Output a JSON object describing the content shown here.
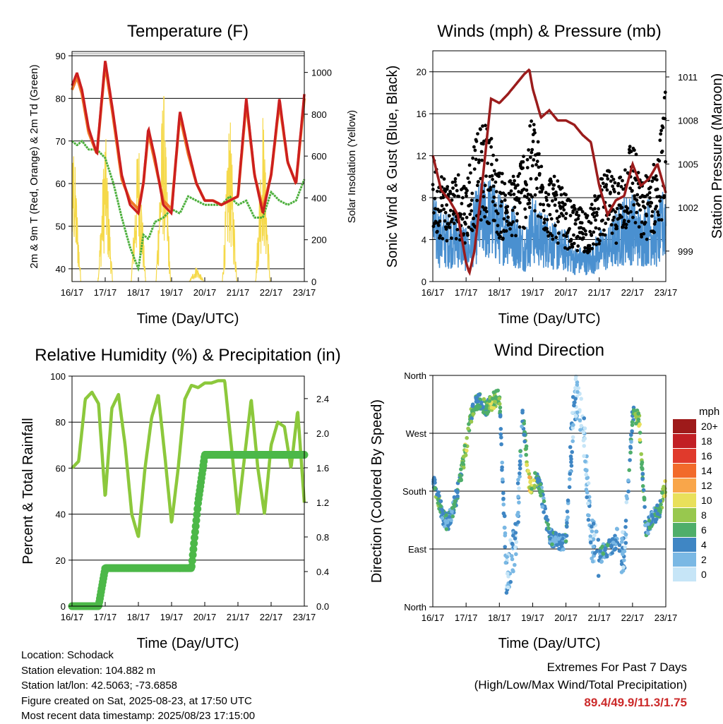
{
  "xticks": [
    "16/17",
    "17/17",
    "18/17",
    "19/17",
    "20/17",
    "21/17",
    "22/17",
    "23/17"
  ],
  "panels": {
    "temperature": {
      "title": "Temperature (F)",
      "xlabel": "Time (Day/UTC)",
      "ylabel_left": "2m & 9m T (Red, Orange) & 2m Td (Green)",
      "ylabel_right": "Solar Insolation (Yellow)",
      "yticks_left": [
        "40",
        "50",
        "60",
        "70",
        "80",
        "90"
      ],
      "yticks_right": [
        "0",
        "200",
        "400",
        "600",
        "800",
        "1000"
      ]
    },
    "winds": {
      "title": "Winds (mph) & Pressure (mb)",
      "xlabel": "Time (Day/UTC)",
      "ylabel_left": "Sonic Wind & Gust (Blue, Black)",
      "ylabel_right": "Station Pressure (Maroon)",
      "yticks_left": [
        "0",
        "4",
        "8",
        "12",
        "16",
        "20"
      ],
      "yticks_right": [
        "999",
        "1002",
        "1005",
        "1008",
        "1011"
      ]
    },
    "humidity": {
      "title": "Relative Humidity (%) & Precipitation (in)",
      "xlabel": "Time (Day/UTC)",
      "ylabel_left": "Percent & Total Rainfall",
      "yticks_left": [
        "0",
        "20",
        "40",
        "60",
        "80",
        "100"
      ],
      "yticks_right": [
        "0.0",
        "0.4",
        "0.8",
        "1.2",
        "1.6",
        "2.0",
        "2.4"
      ]
    },
    "direction": {
      "title": "Wind Direction",
      "xlabel": "Time (Day/UTC)",
      "ylabel_left": "Direction (Colored By Speed)",
      "yticks_left": [
        "North",
        "East",
        "South",
        "West",
        "North"
      ],
      "legend_title": "mph",
      "legend": [
        {
          "label": "20+",
          "color": "#9e1a1a"
        },
        {
          "label": "18",
          "color": "#c21f24"
        },
        {
          "label": "16",
          "color": "#e03a2c"
        },
        {
          "label": "14",
          "color": "#f26a2a"
        },
        {
          "label": "12",
          "color": "#f9a64a"
        },
        {
          "label": "10",
          "color": "#e9e05a"
        },
        {
          "label": "8",
          "color": "#98c84e"
        },
        {
          "label": "6",
          "color": "#4fae6a"
        },
        {
          "label": "4",
          "color": "#3f86c4"
        },
        {
          "label": "2",
          "color": "#7ab8e4"
        },
        {
          "label": "0",
          "color": "#c6e5f7"
        }
      ]
    }
  },
  "station": {
    "location": "Location: Schodack",
    "elevation": "Station elevation: 104.882 m",
    "latlon": "Station lat/lon: 42.5063; -73.6858",
    "created": "Figure created on Sat, 2025-08-23, at 17:50 UTC",
    "recent": "Most recent data timestamp: 2025/08/23 17:15:00"
  },
  "extremes": {
    "title": "Extremes For Past 7 Days",
    "subtitle": "(High/Low/Max Wind/Total Precipitation)",
    "values": "89.4/49.9/11.3/1.75"
  },
  "colors": {
    "temp2m": "#cc1f1f",
    "temp9m": "#f07a28",
    "dewpoint": "#4caf3c",
    "solar": "#f5d94a",
    "wind": "#4a90d0",
    "gust": "#000000",
    "pressure": "#9b1c1c",
    "rh": "#8cc83c",
    "precip": "#4cb848"
  },
  "chart_data": [
    {
      "type": "line",
      "title": "Temperature (F)",
      "xlabel": "Time (Day/UTC)",
      "ylabel": "2m & 9m T (Red, Orange) & 2m Td (Green)",
      "y2label": "Solar Insolation (Yellow)",
      "ylim": [
        37,
        91
      ],
      "y2lim": [
        0,
        1100
      ],
      "x": [
        0,
        0.15,
        0.3,
        0.5,
        0.75,
        1,
        1.25,
        1.5,
        1.75,
        2,
        2.15,
        2.3,
        2.5,
        2.75,
        3,
        3.25,
        3.5,
        3.75,
        4,
        4.25,
        4.5,
        4.75,
        5,
        5.25,
        5.5,
        5.75,
        6,
        6.25,
        6.5,
        6.75,
        7
      ],
      "series": [
        {
          "name": "2m T",
          "values": [
            83,
            86,
            82,
            73,
            67,
            89,
            76,
            62,
            55,
            53,
            60,
            73,
            66,
            55,
            53,
            77,
            68,
            60,
            56,
            56,
            55,
            56,
            57,
            80,
            62,
            53,
            62,
            80,
            65,
            60,
            81
          ]
        },
        {
          "name": "9m T",
          "values": [
            82,
            85,
            81,
            72,
            67,
            88,
            75,
            61,
            56,
            54,
            60,
            72,
            65,
            56,
            54,
            76,
            67,
            60,
            56,
            56,
            55,
            56,
            57,
            79,
            62,
            54,
            62,
            79,
            65,
            60,
            80
          ]
        },
        {
          "name": "2m Td",
          "values": [
            70,
            69,
            70,
            68,
            68,
            66,
            60,
            52,
            45,
            40,
            48,
            47,
            51,
            52,
            54,
            53,
            57,
            56,
            55,
            55,
            55,
            57,
            55,
            56,
            52,
            52,
            58,
            56,
            55,
            56,
            61
          ]
        },
        {
          "name": "Solar Insolation",
          "values": [
            700,
            0,
            0,
            0,
            0,
            760,
            0,
            0,
            0,
            750,
            0,
            0,
            0,
            1000,
            0,
            0,
            0,
            80,
            0,
            0,
            0,
            850,
            0,
            0,
            0,
            850,
            0,
            0,
            0,
            750,
            0
          ]
        }
      ]
    },
    {
      "type": "scatter",
      "title": "Winds (mph) & Pressure (mb)",
      "xlabel": "Time (Day/UTC)",
      "ylabel": "Sonic Wind & Gust (Blue, Black)",
      "y2label": "Station Pressure (Maroon)",
      "ylim": [
        0,
        22
      ],
      "y2lim": [
        996.9,
        1012.8
      ],
      "x": [
        0,
        0.25,
        0.5,
        0.75,
        1,
        1.1,
        1.25,
        1.5,
        1.75,
        2,
        2.25,
        2.5,
        2.75,
        2.9,
        3,
        3.25,
        3.5,
        3.75,
        4,
        4.25,
        4.5,
        4.75,
        5,
        5.25,
        5.5,
        5.75,
        6,
        6.25,
        6.5,
        6.75,
        7
      ],
      "series": [
        {
          "name": "Pressure",
          "values": [
            1005.6,
            1003.2,
            1002.5,
            1001.5,
            998.2,
            997.5,
            999.0,
            1004.0,
            1009.5,
            1009.2,
            1009.8,
            1010.5,
            1011.2,
            1011.5,
            1010.2,
            1008.2,
            1008.7,
            1008.0,
            1008.0,
            1007.7,
            1007.0,
            1006.5,
            1003.5,
            1001.5,
            1002.5,
            1002.8,
            1005.0,
            1003.5,
            1004.0,
            1005.0,
            1003.0
          ]
        },
        {
          "name": "Wind",
          "values": [
            5,
            4,
            4,
            4,
            3,
            3,
            5,
            6,
            6,
            5,
            5,
            4,
            3,
            4,
            5,
            4,
            4,
            3,
            3,
            2,
            2,
            2,
            3,
            3,
            4,
            5,
            5,
            4,
            5,
            4,
            6
          ]
        },
        {
          "name": "Gust",
          "values": [
            10,
            9,
            8,
            9,
            8,
            10,
            11,
            13,
            12,
            9,
            8,
            9,
            11,
            12,
            14,
            10,
            9,
            8,
            7,
            6,
            6,
            6,
            8,
            9,
            8,
            10,
            12,
            8,
            9,
            10,
            16
          ]
        }
      ]
    },
    {
      "type": "line",
      "title": "Relative Humidity (%) & Precipitation (in)",
      "xlabel": "Time (Day/UTC)",
      "ylabel": "Percent & Total Rainfall",
      "ylim": [
        0,
        100
      ],
      "y2lim": [
        0,
        2.66
      ],
      "x": [
        0,
        0.2,
        0.4,
        0.6,
        0.8,
        1,
        1.2,
        1.4,
        1.6,
        1.8,
        2,
        2.2,
        2.4,
        2.6,
        2.8,
        3,
        3.2,
        3.4,
        3.6,
        3.8,
        4,
        4.2,
        4.4,
        4.6,
        4.8,
        5,
        5.2,
        5.4,
        5.6,
        5.8,
        6,
        6.2,
        6.4,
        6.6,
        6.8,
        7
      ],
      "series": [
        {
          "name": "Relative Humidity",
          "values": [
            60,
            63,
            90,
            93,
            88,
            47,
            86,
            92,
            70,
            40,
            30,
            60,
            82,
            92,
            65,
            36,
            60,
            90,
            96,
            95,
            97,
            97,
            98,
            98,
            70,
            40,
            65,
            90,
            60,
            40,
            70,
            80,
            78,
            60,
            85,
            45
          ]
        },
        {
          "name": "Total Precipitation",
          "values": [
            0,
            0,
            0,
            0,
            0,
            0.44,
            0.44,
            0.44,
            0.44,
            0.44,
            0.44,
            0.44,
            0.44,
            0.44,
            0.44,
            0.44,
            0.44,
            0.44,
            0.44,
            1.2,
            1.75,
            1.75,
            1.75,
            1.75,
            1.75,
            1.75,
            1.75,
            1.75,
            1.75,
            1.75,
            1.75,
            1.75,
            1.75,
            1.75,
            1.75,
            1.75
          ]
        }
      ]
    },
    {
      "type": "scatter",
      "title": "Wind Direction",
      "xlabel": "Time (Day/UTC)",
      "ylabel": "Direction (Colored By Speed)",
      "ylim": [
        0,
        360
      ],
      "x": [
        0,
        0.15,
        0.3,
        0.45,
        0.6,
        0.8,
        1,
        1.1,
        1.2,
        1.4,
        1.6,
        1.8,
        2,
        2.2,
        2.5,
        2.7,
        2.9,
        3,
        3.1,
        3.25,
        3.5,
        3.75,
        4,
        4.25,
        4.5,
        4.75,
        5,
        5.25,
        5.5,
        5.75,
        6,
        6.2,
        6.4,
        6.6,
        6.8,
        7
      ],
      "series": [
        {
          "name": "Direction",
          "values": [
            200,
            170,
            140,
            130,
            150,
            190,
            250,
            280,
            310,
            320,
            310,
            320,
            330,
            50,
            100,
            300,
            190,
            190,
            200,
            180,
            110,
            100,
            100,
            330,
            300,
            110,
            80,
            90,
            100,
            80,
            300,
            290,
            120,
            140,
            150,
            190
          ]
        },
        {
          "name": "Speed",
          "values": [
            4,
            6,
            4,
            3,
            4,
            6,
            8,
            7,
            6,
            5,
            6,
            8,
            6,
            2,
            2,
            4,
            10,
            8,
            6,
            5,
            4,
            3,
            4,
            2,
            1,
            2,
            3,
            4,
            3,
            2,
            5,
            8,
            4,
            4,
            5,
            9
          ]
        }
      ]
    }
  ]
}
